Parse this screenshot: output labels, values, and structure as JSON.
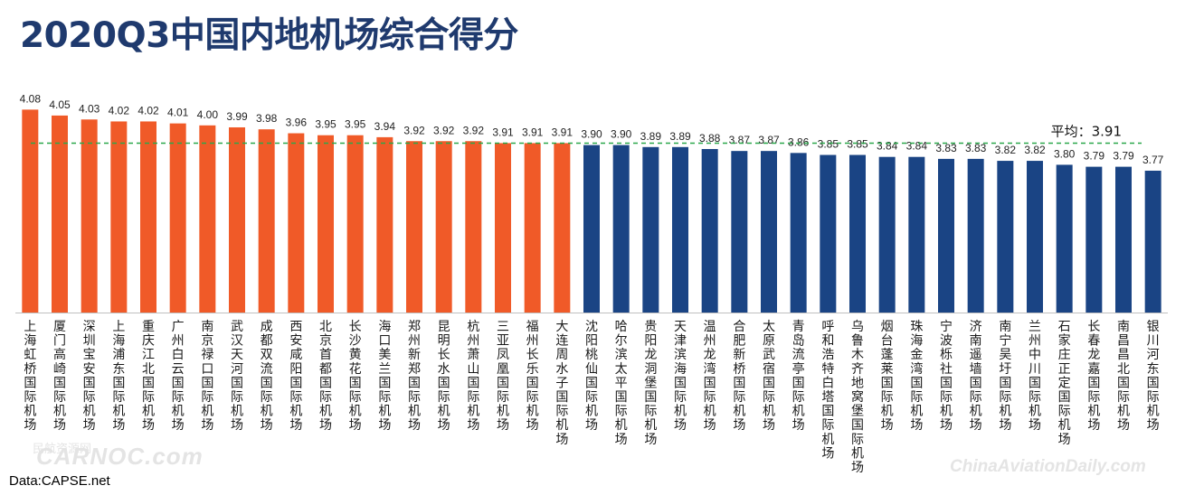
{
  "title": "2020Q3中国内地机场综合得分",
  "source": "Data:CAPSE.net",
  "watermark_left_cn": "民航资源网",
  "watermark_left": "CARNOC.com",
  "watermark_right": "ChinaAviationDaily.com",
  "colors": {
    "above": "#f05a28",
    "below": "#1a4484",
    "avg_line": "#2aa84a",
    "title": "#1f3a6e"
  },
  "chart_data": {
    "type": "bar",
    "title": "2020Q3中国内地机场综合得分",
    "ylim": [
      3.05,
      4.1
    ],
    "grid": false,
    "average": {
      "label": "平均：3.91",
      "value": 3.91
    },
    "categories": [
      "上海虹桥国际机场",
      "厦门高崎国际机场",
      "深圳宝安国际机场",
      "上海浦东国际机场",
      "重庆江北国际机场",
      "广州白云国际机场",
      "南京禄口国际机场",
      "武汉天河国际机场",
      "成都双流国际机场",
      "西安咸阳国际机场",
      "北京首都国际机场",
      "长沙黄花国际机场",
      "海口美兰国际机场",
      "郑州新郑国际机场",
      "昆明长水国际机场",
      "杭州萧山国际机场",
      "三亚凤凰国际机场",
      "福州长乐国际机场",
      "大连周水子国际机场",
      "沈阳桃仙国际机场",
      "哈尔滨太平国际机场",
      "贵阳龙洞堡国际机场",
      "天津滨海国际机场",
      "温州龙湾国际机场",
      "合肥新桥国际机场",
      "太原武宿国际机场",
      "青岛流亭国际机场",
      "呼和浩特白塔国际机场",
      "乌鲁木齐地窝堡国际机场",
      "烟台蓬莱国际机场",
      "珠海金湾国际机场",
      "宁波栎社国际机场",
      "济南遥墙国际机场",
      "南宁吴圩国际机场",
      "兰州中川国际机场",
      "石家庄正定国际机场",
      "长春龙嘉国际机场",
      "南昌昌北国际机场",
      "银川河东国际机场"
    ],
    "values": [
      4.08,
      4.05,
      4.03,
      4.02,
      4.02,
      4.01,
      4.0,
      3.99,
      3.98,
      3.96,
      3.95,
      3.95,
      3.94,
      3.92,
      3.92,
      3.92,
      3.91,
      3.91,
      3.91,
      3.9,
      3.9,
      3.89,
      3.89,
      3.88,
      3.87,
      3.87,
      3.86,
      3.85,
      3.85,
      3.84,
      3.84,
      3.83,
      3.83,
      3.82,
      3.82,
      3.8,
      3.79,
      3.79,
      3.77
    ],
    "value_labels": [
      "4.08",
      "4.05",
      "4.03",
      "4.02",
      "4.02",
      "4.01",
      "4.00",
      "3.99",
      "3.98",
      "3.96",
      "3.95",
      "3.95",
      "3.94",
      "3.92",
      "3.92",
      "3.92",
      "3.91",
      "3.91",
      "3.91",
      "3.90",
      "3.90",
      "3.89",
      "3.89",
      "3.88",
      "3.87",
      "3.87",
      "3.86",
      "3.85",
      "3.85",
      "3.84",
      "3.84",
      "3.83",
      "3.83",
      "3.82",
      "3.82",
      "3.80",
      "3.79",
      "3.79",
      "3.77"
    ],
    "above_average_count": 19
  }
}
